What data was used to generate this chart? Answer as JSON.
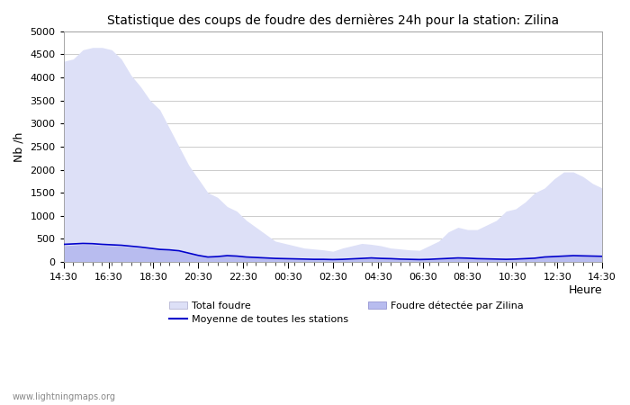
{
  "title": "Statistique des coups de foudre des dernières 24h pour la station: Zilina",
  "xlabel": "Heure",
  "ylabel": "Nb /h",
  "ylim": [
    0,
    5000
  ],
  "yticks": [
    0,
    500,
    1000,
    1500,
    2000,
    2500,
    3000,
    3500,
    4000,
    4500,
    5000
  ],
  "xtick_labels": [
    "14:30",
    "16:30",
    "18:30",
    "20:30",
    "22:30",
    "00:30",
    "02:30",
    "04:30",
    "06:30",
    "08:30",
    "10:30",
    "12:30",
    "14:30"
  ],
  "background_color": "#ffffff",
  "plot_bg_color": "#ffffff",
  "grid_color": "#cccccc",
  "total_color": "#dde0f7",
  "zilina_color": "#b8bcef",
  "mean_color": "#0000cc",
  "watermark": "www.lightningmaps.org",
  "legend_total": "Total foudre",
  "legend_mean": "Moyenne de toutes les stations",
  "legend_zilina": "Foudre détectée par Zilina",
  "total_foudre": [
    4350,
    4400,
    4600,
    4650,
    4650,
    4600,
    4400,
    4050,
    3800,
    3500,
    3300,
    2900,
    2500,
    2100,
    1800,
    1500,
    1400,
    1200,
    1100,
    900,
    750,
    600,
    450,
    400,
    350,
    300,
    280,
    260,
    230,
    300,
    350,
    400,
    380,
    350,
    300,
    280,
    260,
    250,
    350,
    450,
    650,
    750,
    700,
    700,
    800,
    900,
    1100,
    1150,
    1300,
    1500,
    1600,
    1800,
    1950,
    1950,
    1850,
    1700,
    1600
  ],
  "zilina_foudre": [
    350,
    365,
    380,
    375,
    360,
    350,
    340,
    320,
    300,
    280,
    260,
    250,
    230,
    180,
    130,
    100,
    110,
    130,
    120,
    100,
    90,
    80,
    70,
    65,
    60,
    55,
    50,
    50,
    45,
    50,
    60,
    70,
    80,
    70,
    65,
    55,
    50,
    45,
    50,
    60,
    70,
    80,
    75,
    65,
    60,
    55,
    50,
    55,
    65,
    75,
    100,
    110,
    120,
    130,
    125,
    120,
    115
  ],
  "mean_foudre": [
    380,
    390,
    400,
    395,
    380,
    370,
    360,
    340,
    320,
    295,
    270,
    260,
    240,
    190,
    140,
    105,
    115,
    135,
    125,
    105,
    95,
    85,
    75,
    70,
    65,
    60,
    55,
    55,
    50,
    55,
    65,
    75,
    85,
    75,
    70,
    60,
    55,
    50,
    55,
    65,
    75,
    85,
    80,
    70,
    65,
    60,
    55,
    60,
    70,
    80,
    105,
    115,
    125,
    135,
    130,
    125,
    120
  ],
  "n_points": 57
}
